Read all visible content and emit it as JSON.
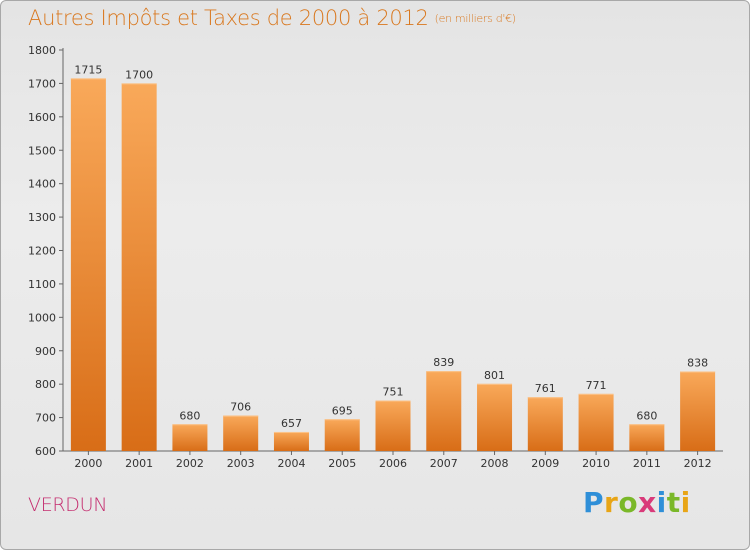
{
  "chart_data": {
    "type": "bar",
    "title": "Autres Impôts et Taxes de 2000 à 2012",
    "subtitle": "(en milliers d'€)",
    "categories": [
      "2000",
      "2001",
      "2002",
      "2003",
      "2004",
      "2005",
      "2006",
      "2007",
      "2008",
      "2009",
      "2010",
      "2011",
      "2012"
    ],
    "values": [
      1715,
      1700,
      680,
      706,
      657,
      695,
      751,
      839,
      801,
      761,
      771,
      680,
      838
    ],
    "ylim": [
      600,
      1800
    ],
    "yticks": [
      600,
      700,
      800,
      900,
      1000,
      1100,
      1200,
      1300,
      1400,
      1500,
      1600,
      1700,
      1800
    ],
    "grid": false,
    "bar_color": "#f08a2a",
    "bar_color_light": "#f9a95a",
    "bar_color_dark": "#d86d17"
  },
  "place_name": "VERDUN",
  "logo": {
    "text": "Proxiti",
    "letters": [
      "P",
      "r",
      "o",
      "x",
      "i",
      "t",
      "i"
    ],
    "colors": [
      "#2f8fd8",
      "#e8a516",
      "#7ab829",
      "#d93a7a",
      "#2f8fd8",
      "#7ab829",
      "#e8a516"
    ]
  }
}
